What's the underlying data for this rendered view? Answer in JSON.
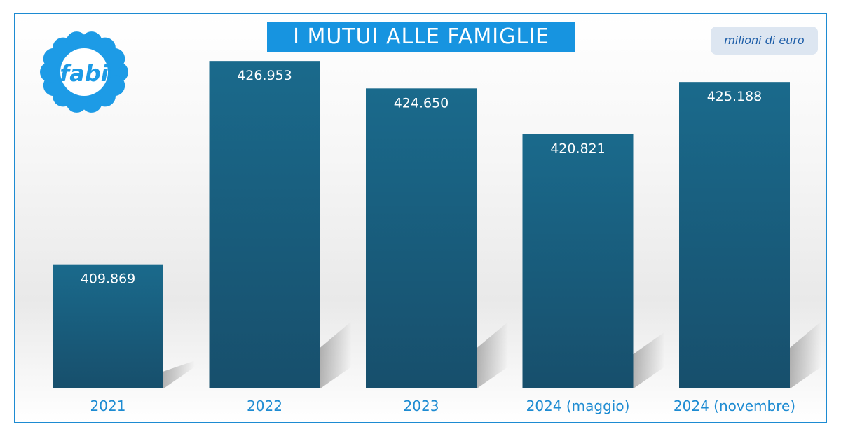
{
  "title": "I MUTUI ALLE FAMIGLIE",
  "unit_badge": "milioni di euro",
  "logo": {
    "text": "fabi",
    "icon": "flower-logo-icon",
    "color": "#1d9be6"
  },
  "colors": {
    "bar": "#195c7a",
    "bar_light": "#1a6a8c",
    "accent": "#1d8bd2",
    "title_bg": "#1794e0"
  },
  "chart_data": {
    "type": "bar",
    "categories": [
      "2021",
      "2022",
      "2023",
      "2024 (maggio)",
      "2024 (novembre)"
    ],
    "values": [
      409869,
      426953,
      424650,
      420821,
      425188
    ],
    "value_labels": [
      "409.869",
      "426.953",
      "424.650",
      "420.821",
      "425.188"
    ],
    "title": "I MUTUI ALLE FAMIGLIE",
    "unit": "milioni di euro",
    "ylim": [
      399500,
      428550
    ],
    "grid": false,
    "axis_visible": false
  }
}
